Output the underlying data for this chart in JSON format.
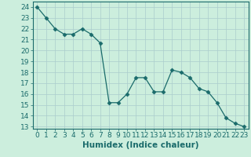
{
  "x": [
    0,
    1,
    2,
    3,
    4,
    5,
    6,
    7,
    8,
    9,
    10,
    11,
    12,
    13,
    14,
    15,
    16,
    17,
    18,
    19,
    20,
    21,
    22,
    23
  ],
  "y": [
    24,
    23,
    22,
    21.5,
    21.5,
    22,
    21.5,
    20.7,
    15.2,
    15.2,
    16,
    17.5,
    17.5,
    16.2,
    16.2,
    18.2,
    18,
    17.5,
    16.5,
    16.2,
    15.2,
    13.8,
    13.3,
    13
  ],
  "line_color": "#1a6b6b",
  "marker": "D",
  "marker_size": 2.5,
  "bg_color": "#cceedd",
  "grid_color": "#aacccc",
  "xlabel": "Humidex (Indice chaleur)",
  "ylim": [
    12.8,
    24.5
  ],
  "xlim": [
    -0.5,
    23.5
  ],
  "yticks": [
    13,
    14,
    15,
    16,
    17,
    18,
    19,
    20,
    21,
    22,
    23,
    24
  ],
  "xticks": [
    0,
    1,
    2,
    3,
    4,
    5,
    6,
    7,
    8,
    9,
    10,
    11,
    12,
    13,
    14,
    15,
    16,
    17,
    18,
    19,
    20,
    21,
    22,
    23
  ],
  "xlabel_fontsize": 7.5,
  "tick_fontsize": 6.5
}
